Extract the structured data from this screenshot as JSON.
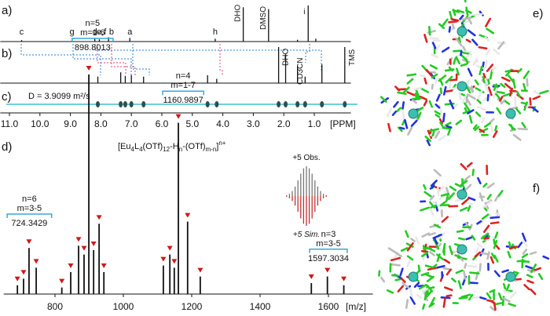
{
  "panels": [
    "a)",
    "b)",
    "c)",
    "d)",
    "e)",
    "f)"
  ],
  "nmr": {
    "xlim": [
      11.3,
      -0.2
    ],
    "xticks": [
      {
        "value": 11,
        "label": "11.0"
      },
      {
        "value": 10,
        "label": "10.0"
      },
      {
        "value": 9,
        "label": "9.0"
      },
      {
        "value": 8,
        "label": "8.0"
      },
      {
        "value": 7,
        "label": "7.0"
      },
      {
        "value": 6,
        "label": "6.0"
      },
      {
        "value": 5,
        "label": "5.0"
      },
      {
        "value": 4,
        "label": "4.0"
      },
      {
        "value": 3,
        "label": "3.0"
      },
      {
        "value": 2,
        "label": "2.0"
      },
      {
        "value": 1,
        "label": "1.0"
      }
    ],
    "xlabel": "[PPM]",
    "a_peaks": [
      [
        10.6,
        4
      ],
      [
        8.95,
        3
      ],
      [
        8.2,
        8
      ],
      [
        8.05,
        6
      ],
      [
        7.75,
        12
      ],
      [
        7.05,
        10
      ],
      [
        4.25,
        8
      ],
      [
        3.33,
        95
      ],
      [
        2.5,
        90
      ],
      [
        1.55,
        5
      ],
      [
        1.2,
        100
      ],
      [
        0.95,
        8
      ]
    ],
    "a_labels": [
      {
        "text": "c",
        "ppm": 10.6
      },
      {
        "text": "g",
        "ppm": 8.95
      },
      {
        "text": "d",
        "ppm": 8.2
      },
      {
        "text": "e,f",
        "ppm": 7.98
      },
      {
        "text": "b",
        "ppm": 7.65
      },
      {
        "text": "a",
        "ppm": 7.05
      },
      {
        "text": "h",
        "ppm": 4.25
      }
    ],
    "a_solvents": [
      {
        "text": "DHO",
        "ppm": 3.33
      },
      {
        "text": "DMSO",
        "ppm": 2.5
      },
      {
        "text": "i",
        "ppm": 1.2
      }
    ],
    "b_peaks": [
      [
        8.1,
        18
      ],
      [
        7.35,
        30
      ],
      [
        7.2,
        20
      ],
      [
        7.0,
        22
      ],
      [
        6.6,
        18
      ],
      [
        4.5,
        22
      ],
      [
        4.2,
        12
      ],
      [
        2.17,
        100
      ],
      [
        1.94,
        80
      ],
      [
        1.55,
        48
      ],
      [
        1.3,
        18
      ],
      [
        0.75,
        52
      ],
      [
        0.0,
        100
      ]
    ],
    "b_solvents": [
      {
        "text": "DHO",
        "ppm": 2.17
      },
      {
        "text": "CD3CN",
        "ppm": 1.7
      },
      {
        "text": "TMS",
        "ppm": 0.0
      }
    ],
    "diffusion": "D = 3.9099 m²/s"
  },
  "ms": {
    "formula": [
      {
        "text": "[Eu",
        "pos": "base"
      },
      {
        "text": "4",
        "pos": "sub"
      },
      {
        "text": "L",
        "pos": "base"
      },
      {
        "text": "4",
        "pos": "sub"
      },
      {
        "text": "(OTf)",
        "pos": "base"
      },
      {
        "text": "12",
        "pos": "sub"
      },
      {
        "text": "-H",
        "pos": "base"
      },
      {
        "text": "n",
        "pos": "sub"
      },
      {
        "text": "-(OTf)",
        "pos": "base"
      },
      {
        "text": "m-n",
        "pos": "sub"
      },
      {
        "text": "]",
        "pos": "base"
      },
      {
        "text": "n+",
        "pos": "sup"
      }
    ],
    "xlim": [
      650,
      1730
    ],
    "xticks": [
      800,
      1000,
      1200,
      1400,
      1600
    ],
    "xlabel": "[m/z]",
    "ylim": [
      0,
      100
    ],
    "peaks": [
      [
        690,
        4
      ],
      [
        708,
        7
      ],
      [
        724,
        21
      ],
      [
        745,
        12
      ],
      [
        820,
        3
      ],
      [
        846,
        10
      ],
      [
        869,
        22
      ],
      [
        885,
        18
      ],
      [
        899,
        100
      ],
      [
        913,
        20
      ],
      [
        929,
        32
      ],
      [
        943,
        10
      ],
      [
        1117,
        13
      ],
      [
        1136,
        18
      ],
      [
        1149,
        12
      ],
      [
        1161,
        78
      ],
      [
        1188,
        33
      ],
      [
        1225,
        8
      ],
      [
        1550,
        5
      ],
      [
        1597,
        8
      ],
      [
        1645,
        4
      ]
    ],
    "groups": [
      {
        "n": "n=6",
        "m": "m=3-5",
        "mz": "724.3429",
        "from": 660,
        "to": 790,
        "top": 30
      },
      {
        "n": "n=5",
        "m": "m=1-6",
        "mz": "898.8013",
        "from": 850,
        "to": 970,
        "top": 110
      },
      {
        "n": "n=4",
        "m": "m=1-7",
        "mz": "1160.9897",
        "from": 1115,
        "to": 1235,
        "top": 86
      },
      {
        "n": "n=3",
        "m": "m=3-5",
        "mz": "1597.3034",
        "from": 1545,
        "to": 1655,
        "top": 14
      }
    ],
    "obs": "+5 Obs.",
    "sim": "+5 Sim."
  }
}
